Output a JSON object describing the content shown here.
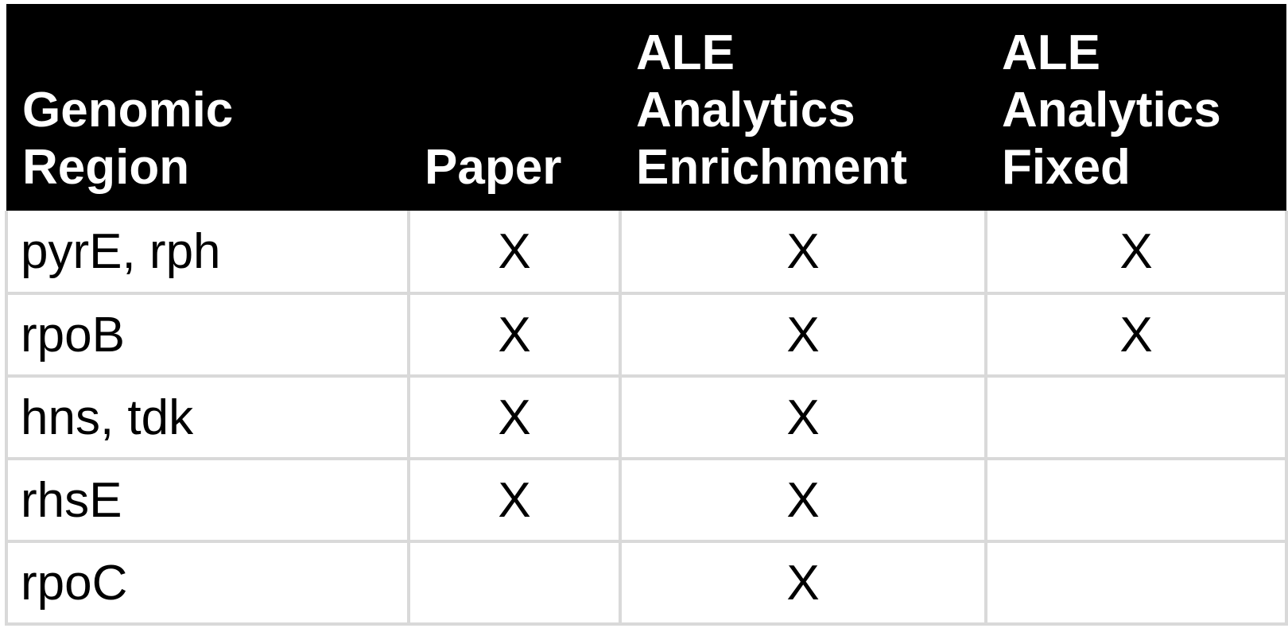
{
  "header": {
    "region": [
      "Genomic",
      "Region"
    ],
    "paper": [
      "Paper"
    ],
    "enrichment": [
      "ALE",
      "Analytics",
      "Enrichment"
    ],
    "fixed": [
      "ALE",
      "Analytics",
      "Fixed"
    ]
  },
  "rows": [
    {
      "region": "pyrE, rph",
      "paper": "X",
      "enrichment": "X",
      "fixed": "X"
    },
    {
      "region": "rpoB",
      "paper": "X",
      "enrichment": "X",
      "fixed": "X"
    },
    {
      "region": "hns, tdk",
      "paper": "X",
      "enrichment": "X",
      "fixed": ""
    },
    {
      "region": "rhsE",
      "paper": "X",
      "enrichment": "X",
      "fixed": ""
    },
    {
      "region": "rpoC",
      "paper": "",
      "enrichment": "X",
      "fixed": ""
    }
  ]
}
